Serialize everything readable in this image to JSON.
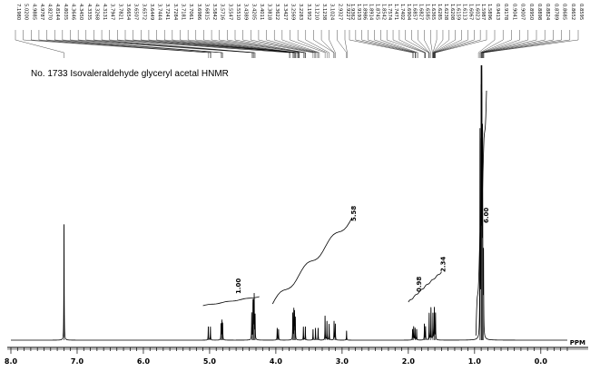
{
  "chart_data": {
    "type": "line",
    "title": "No. 1733 Isovaleraldehyde glyceryl acetal HNMR",
    "x_unit": "PPM",
    "xlim": [
      8.0,
      -0.4
    ],
    "x_ticks": [
      "8.0",
      "7.0",
      "6.0",
      "5.0",
      "4.0",
      "3.0",
      "2.0",
      "1.0",
      "0.0"
    ],
    "x_tick_values": [
      8.0,
      7.0,
      6.0,
      5.0,
      4.0,
      3.0,
      2.0,
      1.0,
      0.0
    ],
    "grid": false,
    "peak_labels": [
      "7.1980",
      "5.0200",
      "4.9885",
      "4.9787",
      "4.8270",
      "4.8144",
      "4.8035",
      "4.3646",
      "4.3450",
      "4.3335",
      "4.3268",
      "4.3131",
      "3.7947",
      "3.7821",
      "3.6654",
      "3.6507",
      "3.6572",
      "3.6449",
      "3.7444",
      "3.7241",
      "3.7284",
      "3.7181",
      "3.7061",
      "3.6986",
      "3.6815",
      "3.5842",
      "3.5716",
      "3.5547",
      "3.5510",
      "3.4389",
      "3.4205",
      "3.4011",
      "3.3818",
      "3.3622",
      "3.3427",
      "3.2569",
      "3.2283",
      "3.1952",
      "3.1210",
      "3.1238",
      "3.1024",
      "2.9327",
      "2.9227",
      "1.9362",
      "1.9193",
      "1.8986",
      "1.8914",
      "1.8745",
      "1.8542",
      "1.7574",
      "1.7471",
      "1.7402",
      "1.6904",
      "1.6857",
      "1.6827",
      "1.6585",
      "1.6365",
      "1.6285",
      "1.6238",
      "1.6208",
      "1.6159",
      "1.6113",
      "1.6067",
      "1.6023",
      "1.5987",
      "1.5896",
      "0.9413",
      "0.9178",
      "0.9041",
      "0.9007",
      "0.8950",
      "0.8898",
      "0.8824",
      "0.8789",
      "0.8685",
      "0.8652",
      "0.8595"
    ],
    "integrals": [
      {
        "label": "1.00",
        "from": 5.1,
        "to": 4.25
      },
      {
        "label": "5.58",
        "from": 4.05,
        "to": 2.85
      },
      {
        "label": "0.98",
        "from": 2.0,
        "to": 1.75
      },
      {
        "label": "2.34",
        "from": 1.75,
        "to": 1.5
      },
      {
        "label": "6.00",
        "from": 0.98,
        "to": 0.82
      }
    ],
    "peaks": [
      {
        "ppm": 7.198,
        "height": 0.43
      },
      {
        "ppm": 5.02,
        "height": 0.05
      },
      {
        "ppm": 4.988,
        "height": 0.05
      },
      {
        "ppm": 4.827,
        "height": 0.06
      },
      {
        "ppm": 4.814,
        "height": 0.07
      },
      {
        "ppm": 4.803,
        "height": 0.06
      },
      {
        "ppm": 4.3646,
        "height": 0.1
      },
      {
        "ppm": 4.345,
        "height": 0.14
      },
      {
        "ppm": 4.3335,
        "height": 0.12
      },
      {
        "ppm": 4.3268,
        "height": 0.15
      },
      {
        "ppm": 4.3131,
        "height": 0.09
      },
      {
        "ppm": 3.98,
        "height": 0.045
      },
      {
        "ppm": 3.96,
        "height": 0.04
      },
      {
        "ppm": 3.7444,
        "height": 0.1
      },
      {
        "ppm": 3.7284,
        "height": 0.11
      },
      {
        "ppm": 3.7181,
        "height": 0.1
      },
      {
        "ppm": 3.7061,
        "height": 0.08
      },
      {
        "ppm": 3.5842,
        "height": 0.05
      },
      {
        "ppm": 3.5547,
        "height": 0.05
      },
      {
        "ppm": 3.4389,
        "height": 0.04
      },
      {
        "ppm": 3.4011,
        "height": 0.045
      },
      {
        "ppm": 3.3622,
        "height": 0.045
      },
      {
        "ppm": 3.2569,
        "height": 0.09
      },
      {
        "ppm": 3.2283,
        "height": 0.07
      },
      {
        "ppm": 3.1952,
        "height": 0.06
      },
      {
        "ppm": 3.121,
        "height": 0.07
      },
      {
        "ppm": 3.1024,
        "height": 0.06
      },
      {
        "ppm": 2.9327,
        "height": 0.035
      },
      {
        "ppm": 1.9362,
        "height": 0.04
      },
      {
        "ppm": 1.9193,
        "height": 0.05
      },
      {
        "ppm": 1.8986,
        "height": 0.045
      },
      {
        "ppm": 1.8745,
        "height": 0.04
      },
      {
        "ppm": 1.7574,
        "height": 0.06
      },
      {
        "ppm": 1.7402,
        "height": 0.05
      },
      {
        "ppm": 1.6857,
        "height": 0.1
      },
      {
        "ppm": 1.6585,
        "height": 0.12
      },
      {
        "ppm": 1.6285,
        "height": 0.1
      },
      {
        "ppm": 1.6067,
        "height": 0.12
      },
      {
        "ppm": 1.5896,
        "height": 0.1
      },
      {
        "ppm": 0.9178,
        "height": 0.75
      },
      {
        "ppm": 0.9007,
        "height": 0.95
      },
      {
        "ppm": 0.8898,
        "height": 0.92
      },
      {
        "ppm": 0.8789,
        "height": 0.72
      },
      {
        "ppm": 0.8652,
        "height": 0.3
      }
    ]
  }
}
